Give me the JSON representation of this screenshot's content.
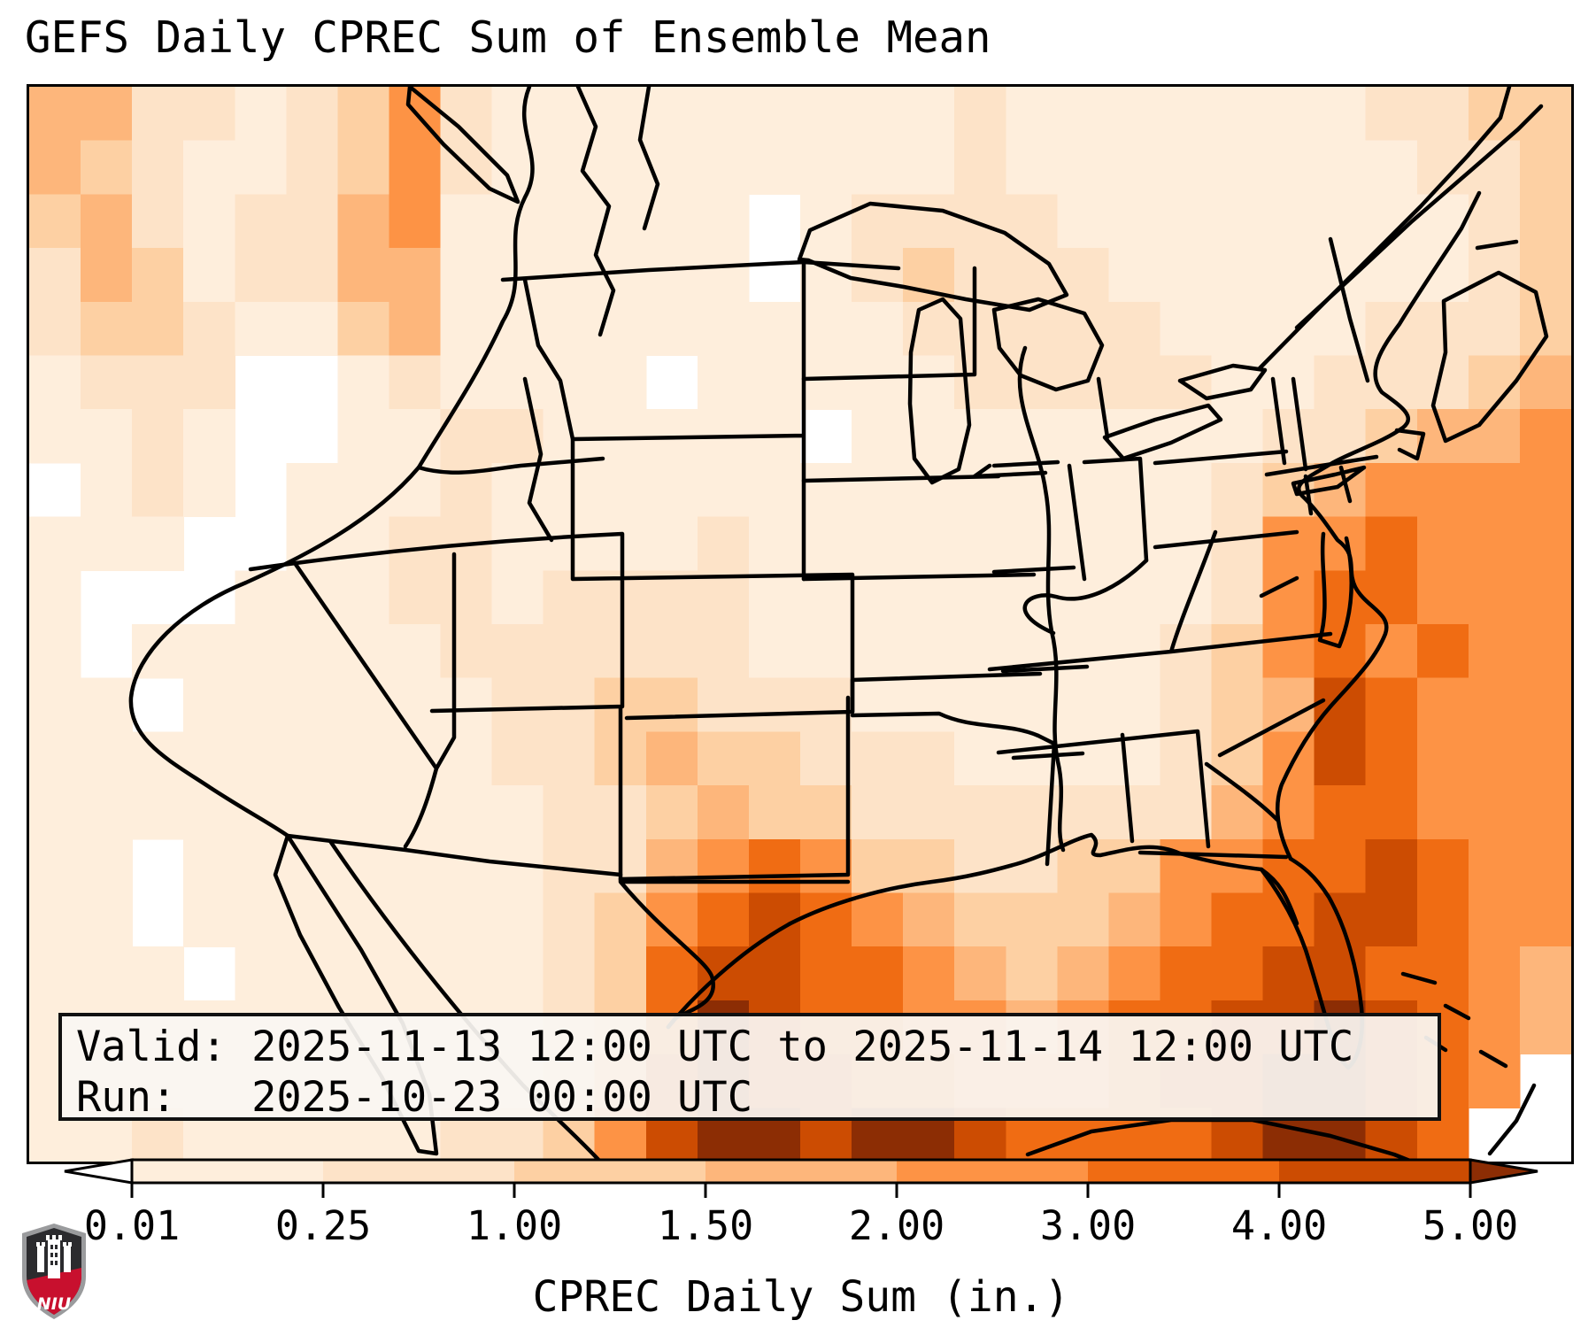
{
  "title": "GEFS Daily CPREC Sum of Ensemble Mean",
  "info": {
    "valid_line": "Valid: 2025-11-13 12:00 UTC to 2025-11-14 12:00 UTC",
    "run_line": "Run:   2025-10-23 00:00 UTC"
  },
  "colorbar": {
    "label": "CPREC Daily Sum (in.)",
    "tick_labels": [
      "0.01",
      "0.25",
      "1.00",
      "1.50",
      "2.00",
      "3.00",
      "4.00",
      "5.00"
    ],
    "under_color": "#ffffff",
    "over_color": "#8c2d04",
    "border_color": "#000000"
  },
  "logo": {
    "text": "NIU",
    "red": "#c8102e",
    "dark": "#2b2b2e",
    "gray": "#9a9b9d"
  },
  "chart_data": {
    "type": "heatmap",
    "title": "GEFS Daily CPREC Sum of Ensemble Mean",
    "region": "Contiguous United States with adjacent Pacific, Atlantic, Gulf of Mexico and Caribbean waters",
    "colorbar_label": "CPREC Daily Sum (in.)",
    "units": "in.",
    "levels": [
      0.01,
      0.25,
      1.0,
      1.5,
      2.0,
      3.0,
      4.0,
      5.0
    ],
    "palette": [
      "#ffffff",
      "#feeedc",
      "#fde3c8",
      "#fdd0a3",
      "#fdb67b",
      "#fd9345",
      "#f06c13",
      "#cc4c02",
      "#8c2d04"
    ],
    "palette_meaning": [
      "< 0.01",
      "0.01-0.25",
      "0.25-1.00",
      "1.00-1.50",
      "1.50-2.00",
      "2.00-3.00",
      "3.00-4.00",
      "4.00-5.00",
      "> 5.00"
    ],
    "valid": "2025-11-13 12:00 UTC to 2025-11-14 12:00 UTC",
    "run": "2025-10-23 00:00 UTC",
    "grid_cols": 30,
    "grid_rows": 20,
    "cells": [
      "442212352111111111211111112233",
      "432112352111111111211111111223",
      "342122451111110122221111111123",
      "243122441111110123222111111123",
      "233211341111111112222211112223",
      "122200121111011111222221122234",
      "112100112211111011111111223445",
      "012101112111111111111112345555",
      "111001122111121111111112556555",
      "100011122122221111111112566555",
      "101111112222221111111123565655",
      "110111111223322211111123476555",
      "111111111223433222111123576555",
      "111111111122343322222224566555",
      "110111111122456533223355667655",
      "110111111123567654333456677655",
      "111011111123677665434566776654",
      "111111111123687665545667787654",
      "111111111124787766555677887650",
      "112111112235788788766667887600"
    ]
  }
}
